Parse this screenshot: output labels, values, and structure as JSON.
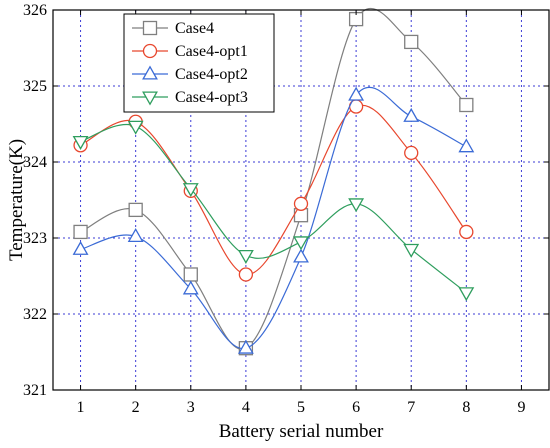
{
  "chart_data": {
    "type": "line",
    "xlabel": "Battery serial number",
    "ylabel": "Temperature(K)",
    "xlim": [
      0.5,
      9.5
    ],
    "ylim": [
      321,
      326
    ],
    "xticks": [
      1,
      2,
      3,
      4,
      5,
      6,
      7,
      8,
      9
    ],
    "yticks": [
      321,
      322,
      323,
      324,
      325,
      326
    ],
    "grid": true,
    "legend_position": "top-left",
    "series": [
      {
        "name": "Case4",
        "color": "#7f7f7f",
        "marker": "square",
        "x": [
          1,
          2,
          3,
          4,
          5,
          6,
          7,
          8
        ],
        "y": [
          323.08,
          323.37,
          322.52,
          321.55,
          323.3,
          325.88,
          325.58,
          324.75
        ]
      },
      {
        "name": "Case4-opt1",
        "color": "#e8472e",
        "marker": "circle",
        "x": [
          1,
          2,
          3,
          4,
          5,
          6,
          7,
          8
        ],
        "y": [
          324.22,
          324.53,
          323.62,
          322.52,
          323.45,
          324.73,
          324.12,
          323.08
        ]
      },
      {
        "name": "Case4-opt2",
        "color": "#3b6bd6",
        "marker": "triangle-up",
        "x": [
          1,
          2,
          3,
          4,
          5,
          6,
          7,
          8
        ],
        "y": [
          322.85,
          323.02,
          322.33,
          321.55,
          322.75,
          324.88,
          324.6,
          324.2
        ]
      },
      {
        "name": "Case4-opt3",
        "color": "#2f9e5e",
        "marker": "triangle-down",
        "x": [
          1,
          2,
          3,
          4,
          5,
          6,
          7,
          8
        ],
        "y": [
          324.27,
          324.47,
          323.65,
          322.77,
          322.95,
          323.45,
          322.85,
          322.28
        ]
      }
    ]
  }
}
